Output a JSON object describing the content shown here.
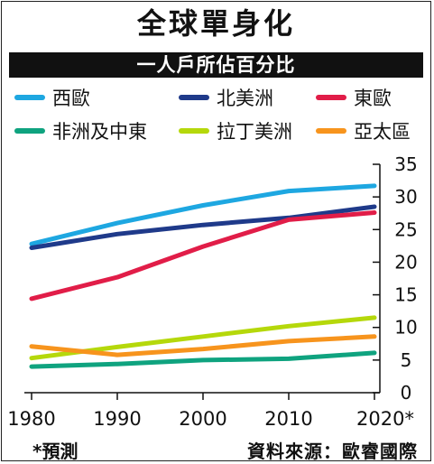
{
  "title": "全球單身化",
  "subtitle": "一人戶所佔百分比",
  "footnote": "*預測",
  "source": "資料來源：歐睿國際",
  "chart_data": {
    "type": "line",
    "title": "全球單身化",
    "subtitle": "一人戶所佔百分比",
    "x": [
      1980,
      1990,
      2000,
      2010,
      2020
    ],
    "x_tick_labels": [
      "1980",
      "1990",
      "2000",
      "2010",
      "2020*"
    ],
    "ylim": [
      0,
      35
    ],
    "y_ticks": [
      0,
      5,
      10,
      15,
      20,
      25,
      30,
      35
    ],
    "y_axis_side": "right",
    "grid": false,
    "legend_placement": "top",
    "series": [
      {
        "name": "西歐",
        "color": "#1EA7E1",
        "values": [
          22.8,
          26,
          28.7,
          30.9,
          31.7
        ]
      },
      {
        "name": "北美洲",
        "color": "#1F3A8A",
        "values": [
          22.2,
          24.3,
          25.7,
          26.8,
          28.5
        ]
      },
      {
        "name": "東歐",
        "color": "#E11D48",
        "values": [
          14.4,
          17.7,
          22.4,
          26.5,
          27.6
        ]
      },
      {
        "name": "非洲及中東",
        "color": "#0FA37F",
        "values": [
          4,
          4.4,
          5,
          5.2,
          6.1
        ]
      },
      {
        "name": "拉丁美洲",
        "color": "#B5D80B",
        "values": [
          5.3,
          7,
          8.6,
          10.2,
          11.5
        ]
      },
      {
        "name": "亞太區",
        "color": "#F7941D",
        "values": [
          7.1,
          5.8,
          6.7,
          7.9,
          8.6
        ]
      }
    ]
  }
}
